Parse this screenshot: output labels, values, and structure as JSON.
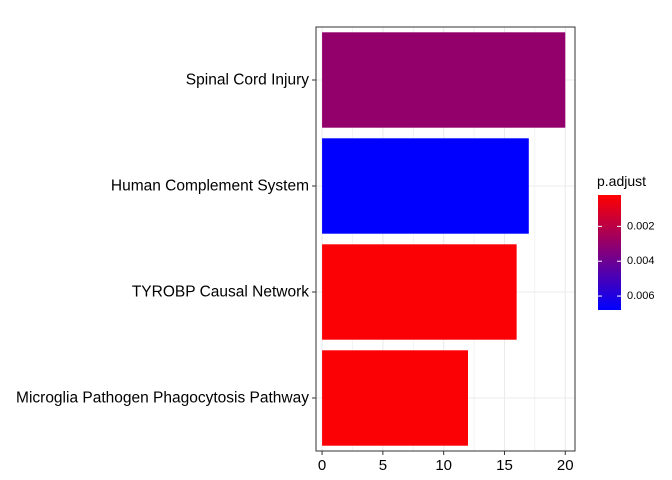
{
  "chart_data": {
    "type": "bar",
    "orientation": "horizontal",
    "categories": [
      "Spinal Cord Injury",
      "Human Complement System",
      "TYROBP Causal Network",
      "Microglia Pathogen Phagocytosis Pathway"
    ],
    "values": [
      20,
      17,
      16,
      12
    ],
    "p_adjust": [
      0.003,
      0.0068,
      0.0003,
      0.0003
    ],
    "xlim": [
      -0.5,
      20.8
    ],
    "xticks": [
      0,
      5,
      10,
      15,
      20
    ],
    "xtick_labels": [
      "0",
      "5",
      "10",
      "15",
      "20"
    ],
    "grid": true,
    "legend": {
      "title": "p.adjust",
      "placement": "right",
      "range": [
        0.0002,
        0.0068
      ],
      "ticks": [
        0.002,
        0.004,
        0.006
      ],
      "tick_labels": [
        "0.002",
        "0.004",
        "0.006"
      ],
      "color_low_value": "#FF0000",
      "color_high_value": "#0000FF"
    }
  }
}
